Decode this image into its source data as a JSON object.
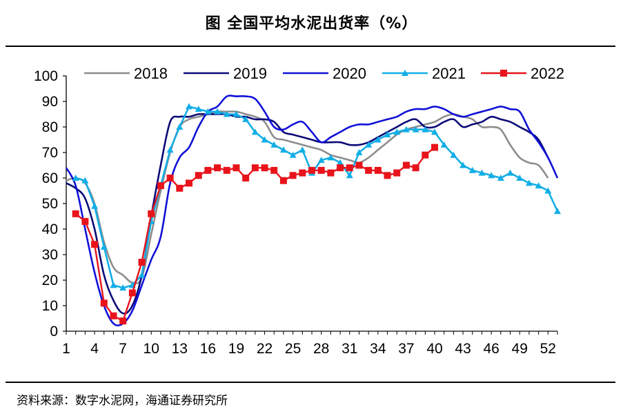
{
  "header": {
    "title": "图  全国平均水泥出货率（%）"
  },
  "footer": {
    "source": "资料来源：数字水泥网，海通证券研究所"
  },
  "chart_data": {
    "type": "line",
    "title": "全国平均水泥出货率（%）",
    "xlabel": "",
    "ylabel": "",
    "xlim": [
      1,
      53
    ],
    "ylim": [
      0,
      100
    ],
    "y_ticks": [
      0,
      10,
      20,
      30,
      40,
      50,
      60,
      70,
      80,
      90,
      100
    ],
    "x_ticks": [
      1,
      4,
      7,
      10,
      13,
      16,
      19,
      22,
      25,
      28,
      31,
      34,
      37,
      40,
      43,
      46,
      49,
      52
    ],
    "grid": false,
    "legend_position": "top",
    "series": [
      {
        "name": "2018",
        "color": "#8c8c8c",
        "marker": "none",
        "smooth": true,
        "x": [
          1,
          2,
          3,
          4,
          5,
          6,
          7,
          8,
          9,
          10,
          11,
          12,
          13,
          14,
          15,
          16,
          17,
          18,
          19,
          20,
          21,
          22,
          23,
          24,
          25,
          26,
          27,
          28,
          29,
          30,
          31,
          32,
          33,
          34,
          35,
          36,
          37,
          38,
          39,
          40,
          41,
          42,
          43,
          44,
          45,
          46,
          47,
          48,
          49,
          50,
          51,
          52
        ],
        "values": [
          59,
          60,
          58,
          50,
          35,
          25,
          22,
          19,
          21,
          38,
          55,
          70,
          80,
          83,
          84,
          85,
          86,
          86,
          86,
          85,
          84,
          82,
          76,
          75,
          74,
          73,
          72,
          71,
          69,
          68,
          67,
          66,
          68,
          71,
          74,
          77,
          79,
          80,
          81,
          82,
          84,
          85,
          84,
          83,
          80,
          80,
          79,
          73,
          68,
          66,
          65,
          60
        ]
      },
      {
        "name": "2019",
        "color": "#0a0a78",
        "marker": "none",
        "smooth": true,
        "x": [
          1,
          2,
          3,
          4,
          5,
          6,
          7,
          8,
          9,
          10,
          11,
          12,
          13,
          14,
          15,
          16,
          17,
          18,
          19,
          20,
          21,
          22,
          23,
          24,
          25,
          26,
          27,
          28,
          29,
          30,
          31,
          32,
          33,
          34,
          35,
          36,
          37,
          38,
          39,
          40,
          41,
          42,
          43,
          44,
          45,
          46,
          47,
          48,
          49,
          50,
          51,
          52
        ],
        "values": [
          58,
          56,
          52,
          40,
          22,
          12,
          7,
          10,
          22,
          45,
          65,
          82,
          84,
          84,
          85,
          85,
          85,
          85,
          84,
          84,
          83,
          83,
          82,
          78,
          77,
          76,
          75,
          74,
          74,
          74,
          73,
          73,
          74,
          76,
          78,
          80,
          82,
          83,
          80,
          80,
          82,
          83,
          80,
          81,
          82,
          84,
          83,
          82,
          80,
          78,
          75,
          68
        ]
      },
      {
        "name": "2020",
        "color": "#1010d8",
        "marker": "none",
        "smooth": true,
        "x": [
          1,
          2,
          3,
          4,
          5,
          6,
          7,
          8,
          9,
          10,
          11,
          12,
          13,
          14,
          15,
          16,
          17,
          18,
          19,
          20,
          21,
          22,
          23,
          24,
          25,
          26,
          27,
          28,
          29,
          30,
          31,
          32,
          33,
          34,
          35,
          36,
          37,
          38,
          39,
          40,
          41,
          42,
          43,
          44,
          45,
          46,
          47,
          48,
          49,
          50,
          51,
          52,
          53
        ],
        "values": [
          64,
          57,
          40,
          23,
          10,
          3,
          3,
          8,
          18,
          28,
          37,
          58,
          68,
          72,
          80,
          86,
          88,
          92,
          92,
          92,
          91,
          86,
          80,
          79,
          81,
          82,
          78,
          74,
          76,
          78,
          80,
          81,
          81,
          82,
          83,
          84,
          86,
          87,
          87,
          88,
          87,
          85,
          84,
          85,
          86,
          87,
          88,
          87,
          86,
          79,
          74,
          68,
          60
        ]
      },
      {
        "name": "2021",
        "color": "#12aee6",
        "marker": "triangle",
        "smooth": false,
        "x": [
          2,
          3,
          4,
          5,
          6,
          7,
          8,
          9,
          10,
          11,
          12,
          13,
          14,
          15,
          16,
          17,
          18,
          19,
          20,
          21,
          22,
          23,
          24,
          25,
          26,
          27,
          28,
          29,
          30,
          31,
          32,
          33,
          34,
          35,
          36,
          37,
          38,
          39,
          40,
          41,
          42,
          43,
          44,
          45,
          46,
          47,
          48,
          49,
          50,
          51,
          52,
          53
        ],
        "values": [
          60,
          59,
          49,
          33,
          18,
          17,
          18,
          22,
          43,
          57,
          71,
          80,
          88,
          87,
          86,
          86,
          85,
          85,
          83,
          78,
          75,
          73,
          71,
          69,
          71,
          62,
          67,
          68,
          66,
          61,
          70,
          73,
          75,
          77,
          78,
          79,
          79,
          79,
          78,
          73,
          69,
          65,
          63,
          62,
          61,
          60,
          62,
          60,
          58,
          57,
          55,
          47
        ]
      },
      {
        "name": "2022",
        "color": "#e8131b",
        "marker": "square",
        "smooth": false,
        "x": [
          2,
          3,
          4,
          5,
          6,
          7,
          8,
          9,
          10,
          11,
          12,
          13,
          14,
          15,
          16,
          17,
          18,
          19,
          20,
          21,
          22,
          23,
          24,
          25,
          26,
          27,
          28,
          29,
          30,
          31,
          32,
          33,
          34,
          35,
          36,
          37,
          38,
          39,
          40
        ],
        "values": [
          46,
          43,
          34,
          11,
          6,
          4,
          15,
          27,
          46,
          57,
          60,
          56,
          58,
          61,
          63,
          64,
          63,
          64,
          60,
          64,
          64,
          63,
          59,
          61,
          62,
          63,
          63,
          62,
          64,
          64,
          65,
          63,
          63,
          61,
          62,
          65,
          64,
          69,
          72
        ]
      }
    ]
  }
}
